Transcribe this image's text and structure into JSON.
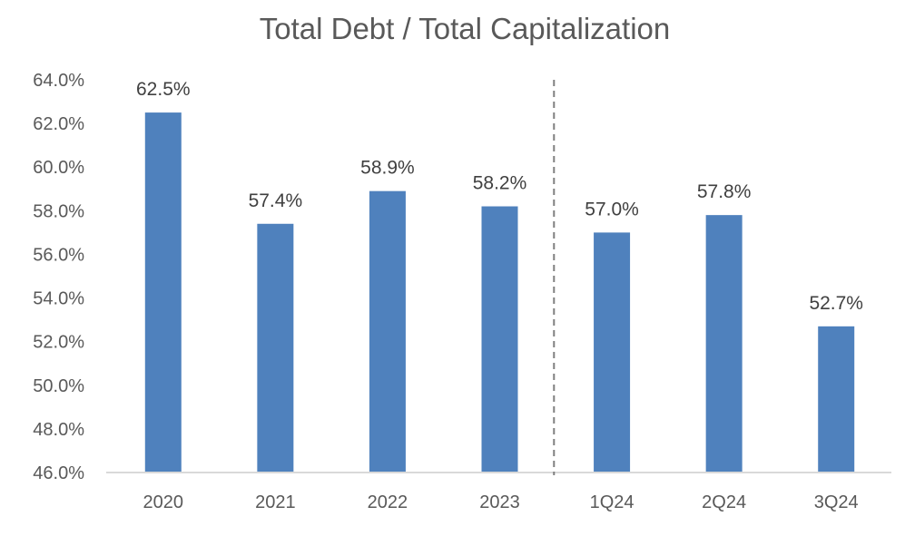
{
  "chart_data": {
    "type": "bar",
    "title": "Total Debt / Total Capitalization",
    "xlabel": "",
    "ylabel": "",
    "categories": [
      "2020",
      "2021",
      "2022",
      "2023",
      "1Q24",
      "2Q24",
      "3Q24"
    ],
    "values": [
      62.5,
      57.4,
      58.9,
      58.2,
      57.0,
      57.8,
      52.7
    ],
    "data_labels": [
      "62.5%",
      "57.4%",
      "58.9%",
      "58.2%",
      "57.0%",
      "57.8%",
      "52.7%"
    ],
    "ylim": [
      46.0,
      64.0
    ],
    "y_ticks": [
      46.0,
      48.0,
      50.0,
      52.0,
      54.0,
      56.0,
      58.0,
      60.0,
      62.0,
      64.0
    ],
    "y_tick_labels": [
      "46.0%",
      "48.0%",
      "50.0%",
      "52.0%",
      "54.0%",
      "56.0%",
      "58.0%",
      "60.0%",
      "62.0%",
      "64.0%"
    ],
    "grid": false,
    "legend": "none",
    "divider_after_category": "2023",
    "colors": {
      "bar": "#4f81bd",
      "title": "#595959",
      "ticks": "#595959",
      "labels": "#404040",
      "axis": "#d9d9d9",
      "divider": "#7f7f7f"
    }
  }
}
